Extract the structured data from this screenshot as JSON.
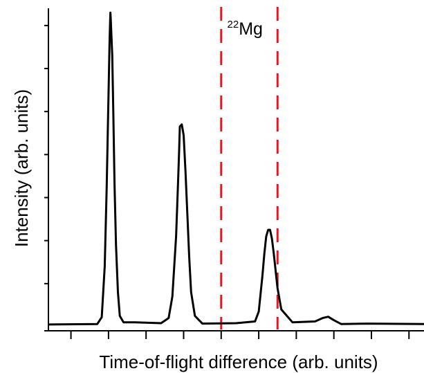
{
  "chart_data": {
    "type": "line",
    "title": "",
    "xlabel": "Time-of-flight difference (arb. units)",
    "ylabel": "Intensity (arb. units)",
    "xlim": [
      0,
      10
    ],
    "ylim": [
      0,
      7.4
    ],
    "x_ticks": [
      0.6,
      1.6,
      2.6,
      3.6,
      4.6,
      5.6,
      6.6,
      7.6,
      8.6,
      9.6
    ],
    "y_ticks": [
      1,
      2,
      3,
      4,
      5,
      6,
      7
    ],
    "grid": false,
    "legend": "none",
    "line_color": "#000000",
    "marker_color": "#e8141e",
    "series": [
      {
        "x": [
          0.0,
          1.3,
          1.42,
          1.5,
          1.55,
          1.6,
          1.63,
          1.65,
          1.66,
          1.7,
          1.73,
          1.76,
          1.8,
          1.85,
          1.9,
          2.0,
          2.3,
          3.0,
          3.2,
          3.3,
          3.4,
          3.45,
          3.48,
          3.5,
          3.55,
          3.6,
          3.65,
          3.7,
          3.75,
          3.8,
          3.9,
          4.1,
          5.0,
          5.5,
          5.6,
          5.7,
          5.75,
          5.8,
          5.85,
          5.9,
          5.95,
          6.0,
          6.1,
          6.2,
          6.5,
          7.1,
          7.3,
          7.45,
          7.6,
          7.8,
          8.5,
          10.0
        ],
        "y": [
          0.05,
          0.06,
          0.22,
          1.4,
          3.2,
          5.4,
          6.7,
          7.3,
          7.15,
          6.3,
          4.9,
          3.3,
          1.9,
          0.8,
          0.25,
          0.1,
          0.1,
          0.08,
          0.2,
          0.7,
          2.1,
          3.3,
          4.1,
          4.65,
          4.7,
          4.45,
          3.6,
          2.6,
          1.6,
          0.8,
          0.25,
          0.07,
          0.08,
          0.12,
          0.35,
          1.2,
          1.7,
          2.1,
          2.25,
          2.25,
          2.05,
          1.7,
          0.9,
          0.4,
          0.1,
          0.12,
          0.2,
          0.23,
          0.15,
          0.06,
          0.07,
          0.06
        ]
      }
    ],
    "markers": [
      {
        "label_sup": "22",
        "label_main": "Mg",
        "x_left": 4.6,
        "x_right": 6.1
      }
    ]
  }
}
